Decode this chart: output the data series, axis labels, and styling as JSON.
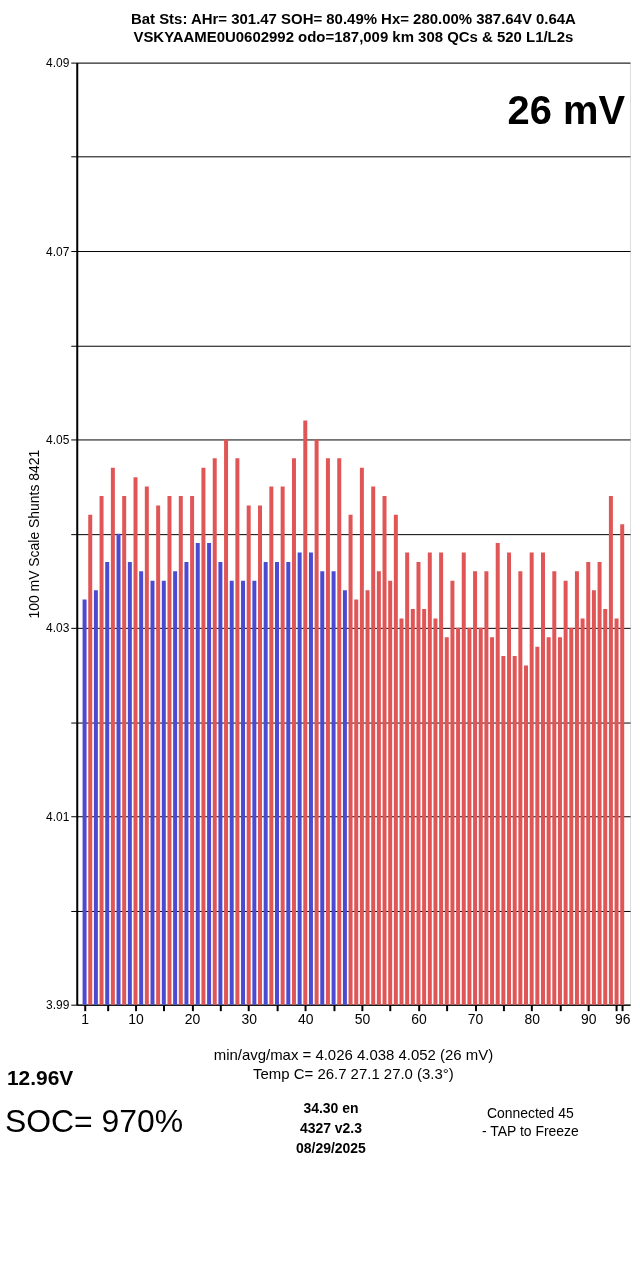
{
  "chart_data": {
    "type": "bar",
    "title": "Bat Sts:  AHr= 301.47  SOH= 80.49%   Hx= 280.00%   387.64V 0.64A",
    "subtitle": "VSKYAAME0U0602992 odo=187,009 km  308 QCs  &  520 L1/L2s",
    "ylabel": "100 mV Scale   Shunts 8421",
    "x": [
      1,
      2,
      3,
      4,
      5,
      6,
      7,
      8,
      9,
      10,
      11,
      12,
      13,
      14,
      15,
      16,
      17,
      18,
      19,
      20,
      21,
      22,
      23,
      24,
      25,
      26,
      27,
      28,
      29,
      30,
      31,
      32,
      33,
      34,
      35,
      36,
      37,
      38,
      39,
      40,
      41,
      42,
      43,
      44,
      45,
      46,
      47,
      48,
      49,
      50,
      51,
      52,
      53,
      54,
      55,
      56,
      57,
      58,
      59,
      60,
      61,
      62,
      63,
      64,
      65,
      66,
      67,
      68,
      69,
      70,
      71,
      72,
      73,
      74,
      75,
      76,
      77,
      78,
      79,
      80,
      81,
      82,
      83,
      84,
      85,
      86,
      87,
      88,
      89,
      90,
      91,
      92,
      93,
      94,
      95,
      96
    ],
    "values": [
      4.033,
      4.042,
      4.034,
      4.044,
      4.037,
      4.047,
      4.04,
      4.044,
      4.037,
      4.046,
      4.036,
      4.045,
      4.035,
      4.043,
      4.035,
      4.044,
      4.036,
      4.044,
      4.037,
      4.044,
      4.039,
      4.047,
      4.039,
      4.048,
      4.037,
      4.05,
      4.035,
      4.048,
      4.035,
      4.043,
      4.035,
      4.043,
      4.037,
      4.045,
      4.037,
      4.045,
      4.037,
      4.048,
      4.038,
      4.052,
      4.038,
      4.05,
      4.036,
      4.048,
      4.036,
      4.048,
      4.034,
      4.042,
      4.033,
      4.047,
      4.034,
      4.045,
      4.036,
      4.044,
      4.035,
      4.042,
      4.031,
      4.038,
      4.032,
      4.037,
      4.032,
      4.038,
      4.031,
      4.038,
      4.029,
      4.035,
      4.03,
      4.038,
      4.03,
      4.036,
      4.03,
      4.036,
      4.029,
      4.039,
      4.027,
      4.038,
      4.027,
      4.036,
      4.026,
      4.038,
      4.028,
      4.038,
      4.029,
      4.036,
      4.029,
      4.035,
      4.03,
      4.036,
      4.031,
      4.037,
      4.034,
      4.037,
      4.032,
      4.044,
      4.031,
      4.041
    ],
    "colors": [
      "#4b4bd2",
      "#e05555",
      "#4b4bd2",
      "#e05555",
      "#4b4bd2",
      "#e05555",
      "#4b4bd2",
      "#e05555",
      "#4b4bd2",
      "#e05555",
      "#4b4bd2",
      "#e05555",
      "#4b4bd2",
      "#e05555",
      "#4b4bd2",
      "#e05555",
      "#4b4bd2",
      "#e05555",
      "#4b4bd2",
      "#e05555",
      "#4b4bd2",
      "#e05555",
      "#4b4bd2",
      "#e05555",
      "#4b4bd2",
      "#e05555",
      "#4b4bd2",
      "#e05555",
      "#4b4bd2",
      "#e05555",
      "#4b4bd2",
      "#e05555",
      "#4b4bd2",
      "#e05555",
      "#4b4bd2",
      "#e05555",
      "#4b4bd2",
      "#e05555",
      "#4b4bd2",
      "#e05555",
      "#4b4bd2",
      "#e05555",
      "#4b4bd2",
      "#e05555",
      "#4b4bd2",
      "#e05555",
      "#4b4bd2",
      "#e05555",
      "#e05555",
      "#e05555",
      "#e05555",
      "#e05555",
      "#e05555",
      "#e05555",
      "#e05555",
      "#e05555",
      "#e05555",
      "#e05555",
      "#e05555",
      "#e05555",
      "#e05555",
      "#e05555",
      "#e05555",
      "#e05555",
      "#e05555",
      "#e05555",
      "#e05555",
      "#e05555",
      "#e05555",
      "#e05555",
      "#e05555",
      "#e05555",
      "#e05555",
      "#e05555",
      "#e05555",
      "#e05555",
      "#e05555",
      "#e05555",
      "#e05555",
      "#e05555",
      "#e05555",
      "#e05555",
      "#e05555",
      "#e05555",
      "#e05555",
      "#e05555",
      "#e05555",
      "#e05555",
      "#e05555",
      "#e05555",
      "#e05555",
      "#e05555",
      "#e05555",
      "#e05555",
      "#e05555",
      "#e05555"
    ],
    "xlim": [
      0.5,
      96.5
    ],
    "xticks": [
      1,
      {
        "value": 5,
        "label": null
      },
      10,
      {
        "value": 15,
        "label": null
      },
      20,
      {
        "value": 25,
        "label": null
      },
      30,
      {
        "value": 35,
        "label": null
      },
      40,
      {
        "value": 45,
        "label": null
      },
      50,
      {
        "value": 55,
        "label": null
      },
      60,
      {
        "value": 65,
        "label": null
      },
      70,
      {
        "value": 75,
        "label": null
      },
      80,
      {
        "value": 85,
        "label": null
      },
      90,
      {
        "value": 95,
        "label": null
      },
      96
    ],
    "ylim": [
      3.99,
      4.09
    ],
    "yticks": [
      3.99,
      {
        "value": 4.0,
        "label": null
      },
      4.01,
      {
        "value": 4.02,
        "label": null
      },
      4.03,
      {
        "value": 4.04,
        "label": null
      },
      4.05,
      {
        "value": 4.06,
        "label": null
      },
      4.07,
      {
        "value": 4.08,
        "label": null
      },
      4.09
    ],
    "grid": "y",
    "annotations": [
      "26 mV",
      "min/avg/max = 4.026 4.038 4.052  (26 mV)",
      "Temp C= 26.7  27.1  27.0  (3.3°)",
      "12.96V",
      "SOC= 970%",
      "34.30 en",
      "4327 v2.3",
      "08/29/2025",
      "Connected 45",
      "- TAP to Freeze"
    ]
  }
}
